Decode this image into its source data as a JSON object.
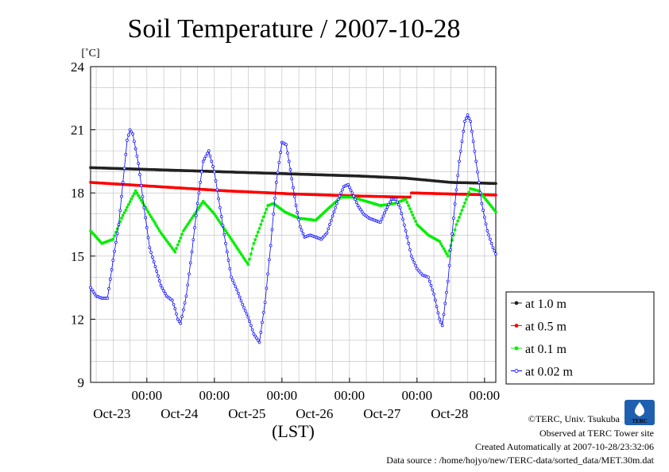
{
  "chart_data": {
    "type": "line",
    "title": "Soil Temperature / 2007-10-28",
    "unit": "[˚C]",
    "xlabel": "(LST)",
    "ylim": [
      9,
      24
    ],
    "yticks": [
      9,
      12,
      15,
      18,
      21,
      24
    ],
    "x_range_hours": [
      0,
      144
    ],
    "time_ticks": [
      {
        "x": 20,
        "label": "00:00",
        "date": "Oct-23"
      },
      {
        "x": 44,
        "label": "00:00",
        "date": "Oct-24"
      },
      {
        "x": 68,
        "label": "00:00",
        "date": "Oct-25"
      },
      {
        "x": 92,
        "label": "00:00",
        "date": "Oct-26"
      },
      {
        "x": 116,
        "label": "00:00",
        "date": "Oct-27"
      },
      {
        "x": 140,
        "label": "00:00",
        "date": "Oct-28"
      }
    ],
    "grid": true,
    "legend_position": "right",
    "series": [
      {
        "name": "at 1.0 m",
        "color": "#222222",
        "points": [
          [
            0,
            19.2
          ],
          [
            24,
            19.1
          ],
          [
            48,
            19.0
          ],
          [
            72,
            18.9
          ],
          [
            96,
            18.8
          ],
          [
            112,
            18.7
          ],
          [
            120,
            18.6
          ],
          [
            128,
            18.5
          ],
          [
            144,
            18.45
          ]
        ]
      },
      {
        "name": "at 0.5 m",
        "color": "#ff0000",
        "points": [
          [
            0,
            18.5
          ],
          [
            24,
            18.3
          ],
          [
            48,
            18.1
          ],
          [
            72,
            17.95
          ],
          [
            96,
            17.85
          ],
          [
            112,
            17.8
          ],
          [
            113.5,
            17.8
          ],
          [
            114,
            18.0
          ],
          [
            128,
            17.95
          ],
          [
            144,
            17.9
          ]
        ]
      },
      {
        "name": "at 0.1 m",
        "color": "#00ee00",
        "points": [
          [
            0,
            16.2
          ],
          [
            4,
            15.6
          ],
          [
            8,
            15.8
          ],
          [
            11,
            16.8
          ],
          [
            16,
            18.1
          ],
          [
            20,
            17.2
          ],
          [
            25,
            16.1
          ],
          [
            30,
            15.2
          ],
          [
            33,
            16.2
          ],
          [
            40,
            17.6
          ],
          [
            44,
            17.0
          ],
          [
            48,
            16.2
          ],
          [
            53,
            15.2
          ],
          [
            56,
            14.6
          ],
          [
            58,
            15.6
          ],
          [
            63,
            17.4
          ],
          [
            65,
            17.5
          ],
          [
            69,
            17.1
          ],
          [
            74,
            16.8
          ],
          [
            80,
            16.7
          ],
          [
            84,
            17.2
          ],
          [
            89,
            17.8
          ],
          [
            93,
            17.8
          ],
          [
            98,
            17.6
          ],
          [
            103,
            17.4
          ],
          [
            108,
            17.5
          ],
          [
            112,
            17.7
          ],
          [
            116,
            16.5
          ],
          [
            120,
            16.0
          ],
          [
            124,
            15.7
          ],
          [
            127,
            15.0
          ],
          [
            130,
            16.5
          ],
          [
            135,
            18.2
          ],
          [
            138,
            18.1
          ],
          [
            144,
            17.1
          ]
        ]
      },
      {
        "name": "at 0.02 m",
        "color": "#0000ff",
        "points": [
          [
            0,
            13.5
          ],
          [
            2,
            13.1
          ],
          [
            4,
            13.0
          ],
          [
            6,
            13.0
          ],
          [
            8,
            14.8
          ],
          [
            10,
            16.5
          ],
          [
            11.5,
            18.5
          ],
          [
            13,
            20.5
          ],
          [
            14,
            21.0
          ],
          [
            15,
            20.8
          ],
          [
            17,
            19.4
          ],
          [
            19,
            17.3
          ],
          [
            21,
            15.4
          ],
          [
            23,
            14.5
          ],
          [
            25,
            13.6
          ],
          [
            27,
            13.1
          ],
          [
            29,
            12.9
          ],
          [
            30,
            12.5
          ],
          [
            31,
            12.0
          ],
          [
            32,
            11.8
          ],
          [
            34,
            13.1
          ],
          [
            36,
            15.2
          ],
          [
            38,
            17.5
          ],
          [
            40,
            19.5
          ],
          [
            42,
            20.0
          ],
          [
            44,
            19.0
          ],
          [
            46,
            17.3
          ],
          [
            48,
            15.6
          ],
          [
            50,
            14.0
          ],
          [
            52,
            13.4
          ],
          [
            54,
            12.7
          ],
          [
            56,
            12.1
          ],
          [
            58,
            11.3
          ],
          [
            60,
            10.9
          ],
          [
            62,
            12.8
          ],
          [
            64,
            15.5
          ],
          [
            66,
            18.5
          ],
          [
            68,
            20.4
          ],
          [
            69.5,
            20.3
          ],
          [
            71,
            19.1
          ],
          [
            73,
            17.4
          ],
          [
            74.5,
            16.4
          ],
          [
            76,
            15.9
          ],
          [
            78,
            16.0
          ],
          [
            80,
            15.9
          ],
          [
            82,
            15.8
          ],
          [
            84,
            16.1
          ],
          [
            86,
            16.9
          ],
          [
            88,
            17.7
          ],
          [
            90,
            18.3
          ],
          [
            91.5,
            18.4
          ],
          [
            93,
            18.0
          ],
          [
            95,
            17.4
          ],
          [
            97,
            17.0
          ],
          [
            99,
            16.8
          ],
          [
            101,
            16.7
          ],
          [
            103,
            16.6
          ],
          [
            105,
            17.2
          ],
          [
            107,
            17.7
          ],
          [
            108.5,
            17.7
          ],
          [
            110,
            17.3
          ],
          [
            112,
            16.2
          ],
          [
            114,
            15.0
          ],
          [
            116,
            14.4
          ],
          [
            118,
            14.1
          ],
          [
            120,
            14.0
          ],
          [
            122,
            13.2
          ],
          [
            124,
            12.0
          ],
          [
            125,
            11.7
          ],
          [
            127,
            13.8
          ],
          [
            129,
            16.8
          ],
          [
            131,
            19.5
          ],
          [
            133,
            21.4
          ],
          [
            134,
            21.7
          ],
          [
            135,
            21.4
          ],
          [
            137,
            19.5
          ],
          [
            139,
            17.5
          ],
          [
            141,
            16.2
          ],
          [
            143,
            15.4
          ],
          [
            144,
            15.1
          ]
        ]
      }
    ]
  },
  "credits": {
    "copyright": "©TERC, Univ. Tsukuba",
    "site": "Observed at TERC Tower site",
    "created": "Created Automatically at 2007-10-28/23:32:06",
    "source": "Data source : /home/hojyo/new/TERC-data/sorted_data/MET.30m.dat",
    "logo_text": "TERC"
  }
}
